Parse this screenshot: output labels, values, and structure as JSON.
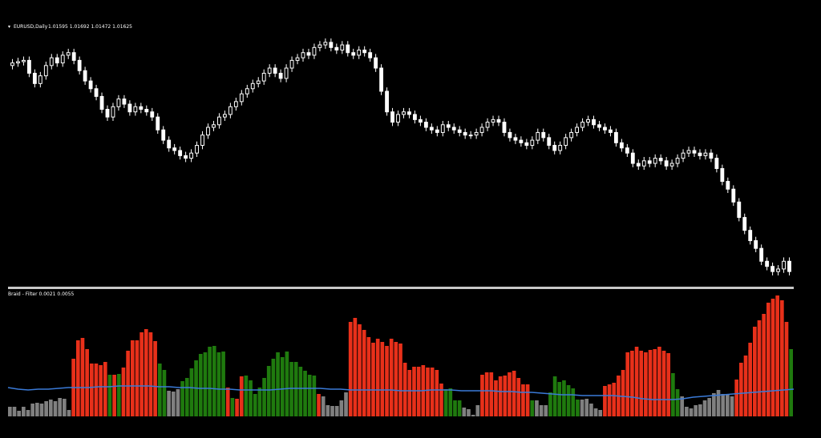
{
  "chart_data": [
    {
      "type": "candlestick",
      "title": "EURUSD,Daily",
      "ohlc_label": "1.01595 1.01692 1.01472 1.01625",
      "colors": {
        "candle": "#ffffff",
        "background": "#000000"
      },
      "close": [
        1.097,
        1.0975,
        1.098,
        1.093,
        1.089,
        1.092,
        1.096,
        1.099,
        1.097,
        1.1,
        1.101,
        1.098,
        1.094,
        1.09,
        1.087,
        1.084,
        1.079,
        1.076,
        1.08,
        1.083,
        1.081,
        1.078,
        1.08,
        1.079,
        1.078,
        1.076,
        1.071,
        1.067,
        1.064,
        1.063,
        1.061,
        1.06,
        1.062,
        1.065,
        1.069,
        1.072,
        1.073,
        1.076,
        1.077,
        1.08,
        1.082,
        1.085,
        1.087,
        1.089,
        1.09,
        1.093,
        1.095,
        1.093,
        1.091,
        1.095,
        1.098,
        1.099,
        1.101,
        1.1,
        1.103,
        1.104,
        1.105,
        1.103,
        1.102,
        1.104,
        1.101,
        1.1,
        1.102,
        1.101,
        1.099,
        1.095,
        1.086,
        1.078,
        1.074,
        1.077,
        1.078,
        1.077,
        1.075,
        1.074,
        1.072,
        1.071,
        1.07,
        1.073,
        1.072,
        1.071,
        1.07,
        1.069,
        1.069,
        1.07,
        1.072,
        1.074,
        1.075,
        1.074,
        1.07,
        1.068,
        1.067,
        1.066,
        1.065,
        1.067,
        1.07,
        1.068,
        1.065,
        1.063,
        1.065,
        1.068,
        1.07,
        1.072,
        1.074,
        1.075,
        1.073,
        1.072,
        1.071,
        1.07,
        1.066,
        1.064,
        1.062,
        1.058,
        1.057,
        1.059,
        1.058,
        1.06,
        1.059,
        1.057,
        1.058,
        1.06,
        1.062,
        1.063,
        1.062,
        1.061,
        1.062,
        1.06,
        1.056,
        1.051,
        1.048,
        1.043,
        1.037,
        1.032,
        1.028,
        1.025,
        1.02,
        1.018,
        1.016,
        1.017,
        1.02,
        1.016
      ],
      "ylim": [
        1.012,
        1.109
      ]
    },
    {
      "type": "bar",
      "title": "Braid - Filter 0.0021 0.0055",
      "colors": {
        "up": "#1f7a0e",
        "down": "#e8301a",
        "neutral": "#808080",
        "filter": "#3a7ad8"
      },
      "values": [
        12,
        12,
        7,
        12,
        8,
        16,
        17,
        16,
        19,
        21,
        19,
        23,
        22,
        8,
        72,
        95,
        98,
        84,
        66,
        66,
        64,
        68,
        52,
        52,
        53,
        61,
        82,
        95,
        95,
        105,
        109,
        105,
        94,
        66,
        58,
        32,
        31,
        34,
        44,
        48,
        60,
        70,
        78,
        80,
        87,
        88,
        80,
        81,
        36,
        23,
        22,
        50,
        51,
        45,
        28,
        36,
        48,
        63,
        72,
        80,
        74,
        81,
        68,
        68,
        62,
        57,
        52,
        51,
        28,
        25,
        14,
        13,
        13,
        20,
        30,
        118,
        123,
        115,
        108,
        99,
        92,
        97,
        93,
        88,
        97,
        93,
        91,
        67,
        58,
        62,
        62,
        64,
        61,
        61,
        58,
        41,
        34,
        35,
        20,
        20,
        11,
        9,
        2,
        14,
        52,
        55,
        55,
        45,
        50,
        51,
        55,
        57,
        48,
        40,
        40,
        20,
        20,
        14,
        14,
        30,
        50,
        43,
        45,
        39,
        35,
        21,
        21,
        22,
        16,
        10,
        8,
        38,
        40,
        42,
        51,
        58,
        80,
        82,
        87,
        82,
        80,
        83,
        84,
        87,
        82,
        79,
        54,
        34,
        25,
        12,
        10,
        14,
        15,
        20,
        23,
        29,
        33,
        28,
        27,
        25,
        46,
        67,
        76,
        92,
        112,
        120,
        128,
        142,
        147,
        151,
        145,
        118,
        84
      ],
      "colors_seq": [
        "n",
        "n",
        "n",
        "n",
        "n",
        "n",
        "n",
        "n",
        "n",
        "n",
        "n",
        "n",
        "n",
        "n",
        "d",
        "d",
        "d",
        "d",
        "d",
        "d",
        "d",
        "d",
        "u",
        "d",
        "u",
        "d",
        "d",
        "d",
        "d",
        "d",
        "d",
        "d",
        "d",
        "u",
        "u",
        "n",
        "n",
        "n",
        "u",
        "u",
        "u",
        "u",
        "u",
        "u",
        "u",
        "u",
        "u",
        "u",
        "d",
        "u",
        "d",
        "d",
        "u",
        "u",
        "u",
        "u",
        "u",
        "u",
        "u",
        "u",
        "u",
        "u",
        "u",
        "u",
        "u",
        "u",
        "u",
        "u",
        "d",
        "n",
        "n",
        "n",
        "n",
        "n",
        "n",
        "d",
        "d",
        "d",
        "d",
        "d",
        "d",
        "d",
        "d",
        "d",
        "d",
        "d",
        "d",
        "d",
        "d",
        "d",
        "d",
        "d",
        "d",
        "d",
        "d",
        "d",
        "u",
        "u",
        "u",
        "u",
        "n",
        "n",
        "n",
        "n",
        "d",
        "d",
        "d",
        "d",
        "d",
        "d",
        "d",
        "d",
        "d",
        "d",
        "d",
        "u",
        "n",
        "n",
        "n",
        "u",
        "u",
        "u",
        "u",
        "u",
        "u",
        "u",
        "n",
        "n",
        "n",
        "n",
        "n",
        "d",
        "d",
        "d",
        "d",
        "d",
        "d",
        "d",
        "d",
        "d",
        "d",
        "d",
        "d",
        "d",
        "d",
        "d",
        "u",
        "u",
        "n",
        "n",
        "n",
        "n",
        "n",
        "n",
        "n",
        "n",
        "n",
        "n",
        "n",
        "n",
        "d",
        "d",
        "d",
        "d",
        "d",
        "d",
        "d",
        "d",
        "d",
        "d",
        "d",
        "d",
        "u"
      ],
      "filter": [
        36,
        34,
        33,
        34,
        34,
        35,
        36,
        36,
        36,
        37,
        37,
        38,
        38,
        38,
        38,
        37,
        37,
        36,
        36,
        35,
        35,
        34,
        34,
        33,
        33,
        33,
        33,
        34,
        35,
        35,
        35,
        35,
        34,
        34,
        33,
        33,
        33,
        33,
        33,
        32,
        32,
        32,
        33,
        33,
        33,
        32,
        32,
        32,
        32,
        31,
        31,
        30,
        30,
        29,
        28,
        27,
        27,
        26,
        26,
        26,
        26,
        25,
        24,
        22,
        21,
        21,
        21,
        22,
        24,
        25,
        26,
        27,
        28,
        29,
        30,
        31,
        32,
        33,
        34
      ],
      "ylim": [
        0,
        152
      ]
    }
  ]
}
